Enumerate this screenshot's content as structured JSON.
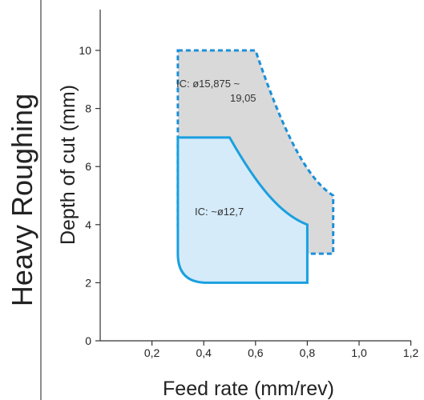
{
  "side_title": "Heavy Roughing",
  "chart_data": {
    "type": "area",
    "xlabel": "Feed rate (mm/rev)",
    "ylabel": "Depth of cut (mm)",
    "xlim": [
      0,
      1.2
    ],
    "ylim": [
      0,
      11.5
    ],
    "x_ticks": [
      {
        "value": 0.2,
        "label": "0,2"
      },
      {
        "value": 0.4,
        "label": "0,4"
      },
      {
        "value": 0.6,
        "label": "0,6"
      },
      {
        "value": 0.8,
        "label": "0,8"
      },
      {
        "value": 1.0,
        "label": "1,0"
      },
      {
        "value": 1.2,
        "label": "1,2"
      }
    ],
    "y_ticks": [
      {
        "value": 0,
        "label": "0"
      },
      {
        "value": 2,
        "label": "2"
      },
      {
        "value": 4,
        "label": "4"
      },
      {
        "value": 6,
        "label": "6"
      },
      {
        "value": 8,
        "label": "8"
      },
      {
        "value": 10,
        "label": "10"
      }
    ],
    "regions": [
      {
        "label_lines": [
          "IC: ø15,875 ~",
          "19,05"
        ],
        "fill": "#d9d9d9",
        "stroke": "#1a8fd8",
        "dashed": true,
        "feed_min": 0.3,
        "feed_max": 0.9,
        "depth_min": 3.0,
        "depth_max": 10.0,
        "top_right_feed": 0.6,
        "right_edge_depth": 5.0
      },
      {
        "label_lines": [
          "IC: ~ø12,7"
        ],
        "fill": "#d5ebfa",
        "stroke": "#1aa0e0",
        "dashed": false,
        "feed_min": 0.3,
        "feed_max": 0.8,
        "depth_min": 2.0,
        "depth_max": 7.0,
        "top_right_feed": 0.5,
        "right_edge_depth": 4.0
      }
    ]
  }
}
